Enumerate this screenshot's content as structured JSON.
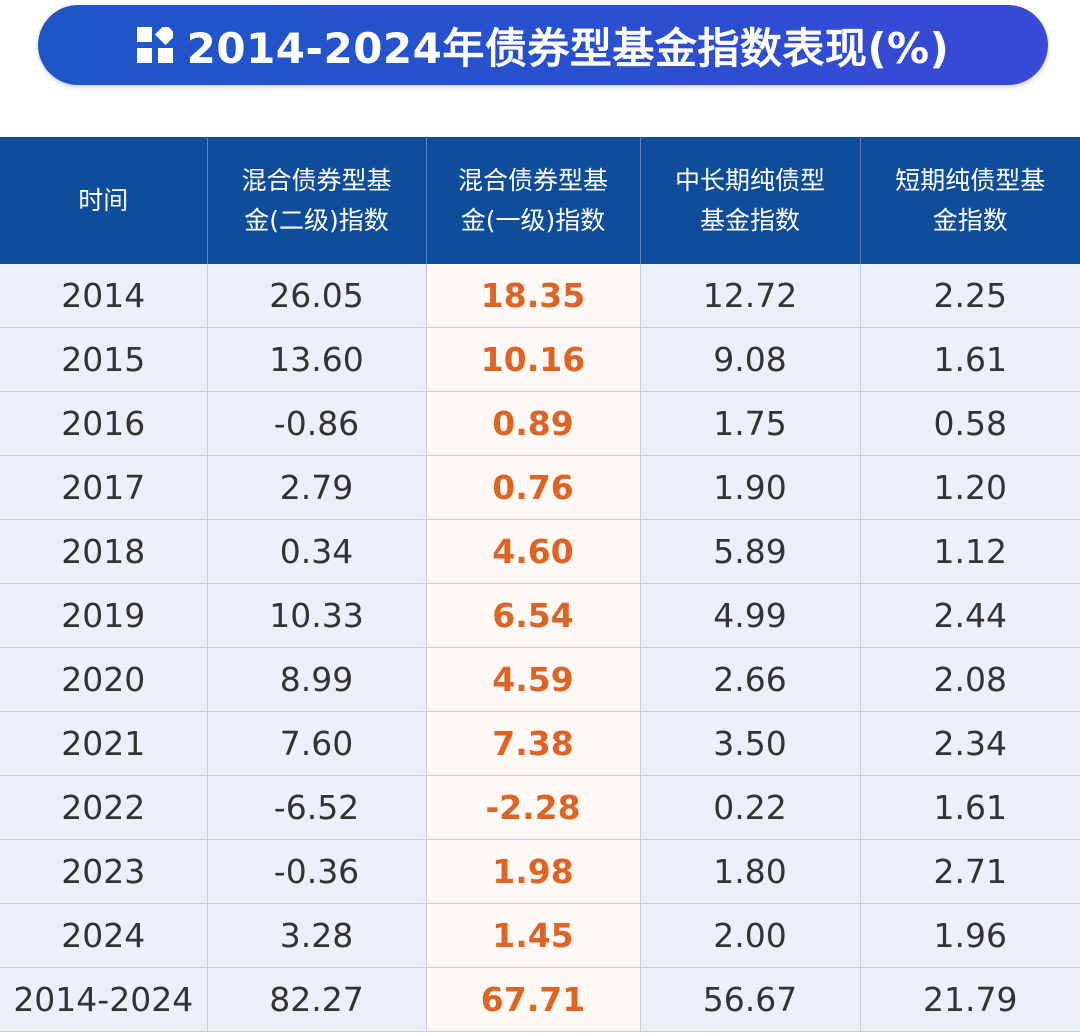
{
  "title": "2014-2024年债券型基金指数表现(%)",
  "table": {
    "header": [
      "时间",
      "混合债券型基金(二级)指数",
      "混合债券型基金(一级)指数",
      "中长期纯债型基金指数",
      "短期纯债型基金指数"
    ],
    "rows": [
      [
        "2014",
        "26.05",
        "18.35",
        "12.72",
        "2.25"
      ],
      [
        "2015",
        "13.60",
        "10.16",
        "9.08",
        "1.61"
      ],
      [
        "2016",
        "-0.86",
        "0.89",
        "1.75",
        "0.58"
      ],
      [
        "2017",
        "2.79",
        "0.76",
        "1.90",
        "1.20"
      ],
      [
        "2018",
        "0.34",
        "4.60",
        "5.89",
        "1.12"
      ],
      [
        "2019",
        "10.33",
        "6.54",
        "4.99",
        "2.44"
      ],
      [
        "2020",
        "8.99",
        "4.59",
        "2.66",
        "2.08"
      ],
      [
        "2021",
        "7.60",
        "7.38",
        "3.50",
        "2.34"
      ],
      [
        "2022",
        "-6.52",
        "-2.28",
        "0.22",
        "1.61"
      ],
      [
        "2023",
        "-0.36",
        "1.98",
        "1.80",
        "2.71"
      ],
      [
        "2024",
        "3.28",
        "1.45",
        "2.00",
        "1.96"
      ],
      [
        "2014-2024",
        "82.27",
        "67.71",
        "56.67",
        "21.79"
      ]
    ]
  }
}
